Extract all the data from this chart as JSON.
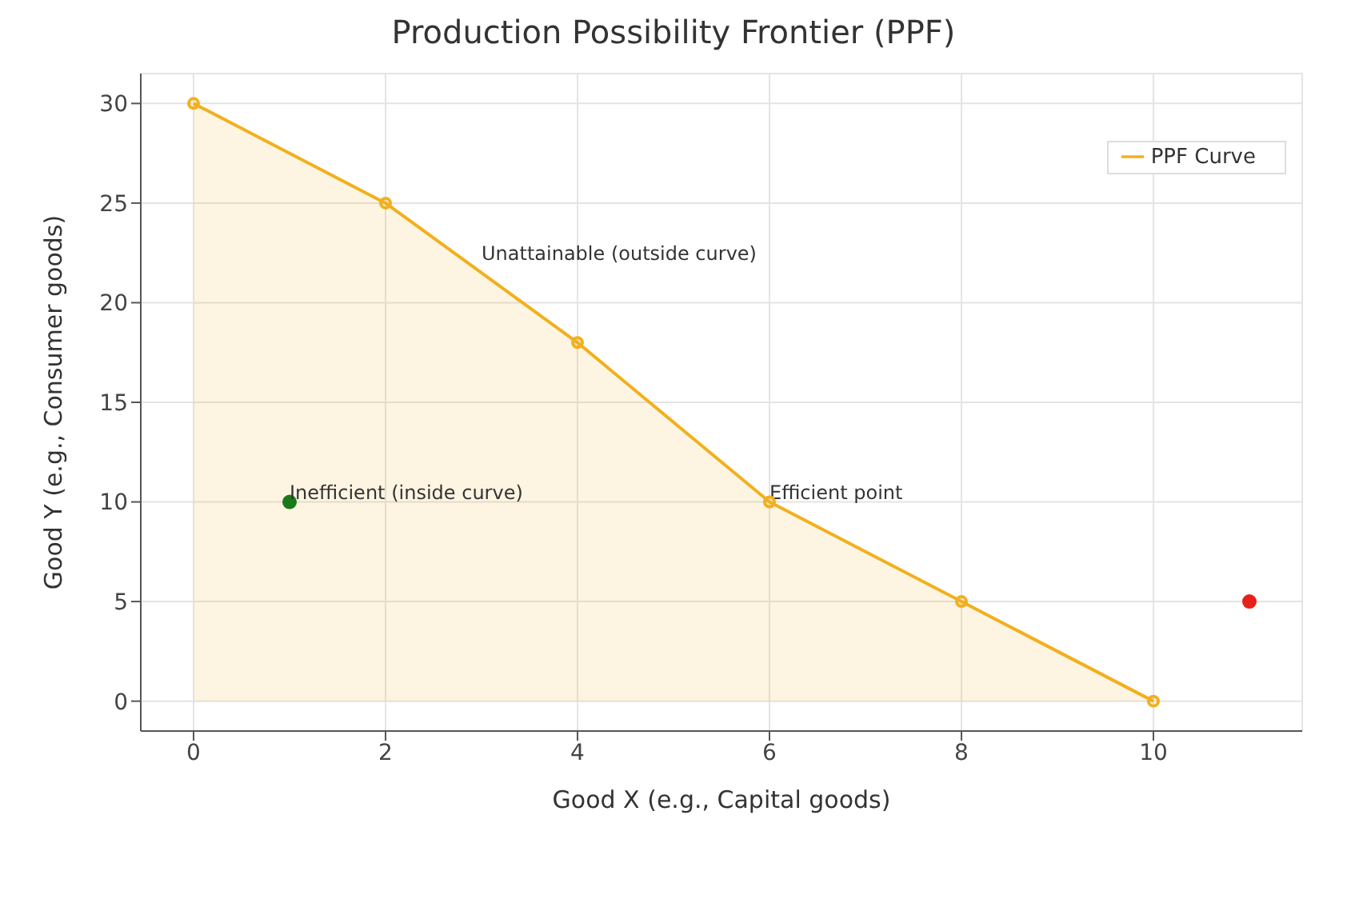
{
  "chart_data": {
    "type": "area",
    "title": "Production Possibility Frontier (PPF)",
    "xlabel": "Good X (e.g., Capital goods)",
    "ylabel": "Good Y (e.g., Consumer goods)",
    "xlim": [
      -0.55,
      11.55
    ],
    "xticks": [
      0,
      2,
      4,
      6,
      8,
      10
    ],
    "ylim": [
      -1.5,
      31.5
    ],
    "yticks": [
      0,
      5,
      10,
      15,
      20,
      25,
      30
    ],
    "grid": true,
    "legend": "top right",
    "marker": "circle",
    "series": [
      {
        "name": "PPF Curve",
        "color": "#f2b01e",
        "x": [
          0,
          2,
          4,
          6,
          8,
          10
        ],
        "values": [
          30,
          25,
          18,
          10,
          5,
          0
        ]
      },
      {
        "type": "scatter",
        "color": "#1a7a1a",
        "x": [
          1
        ],
        "values": [
          10
        ]
      },
      {
        "type": "scatter",
        "color": "#e8201a",
        "x": [
          11
        ],
        "values": [
          5
        ]
      }
    ],
    "annotations": [
      {
        "text": "Inefficient (inside curve)",
        "x": 1,
        "y": 10
      },
      {
        "text": "Efficient point",
        "x": 6,
        "y": 10
      },
      {
        "text": "Unattainable (outside curve)",
        "x": 3,
        "y": 22
      }
    ]
  }
}
